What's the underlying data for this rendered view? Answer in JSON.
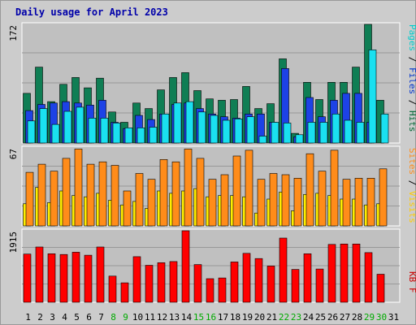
{
  "chart_data": {
    "type": "bar",
    "title": "Daily usage for April 2023",
    "categories": [
      "1",
      "2",
      "3",
      "4",
      "5",
      "6",
      "7",
      "8",
      "9",
      "10",
      "11",
      "12",
      "13",
      "14",
      "15",
      "16",
      "17",
      "18",
      "19",
      "20",
      "21",
      "22",
      "23",
      "24",
      "25",
      "26",
      "27",
      "28",
      "29",
      "30",
      "31"
    ],
    "weekend_days": [
      "8",
      "9",
      "15",
      "16",
      "22",
      "23",
      "29",
      "30"
    ],
    "panels": [
      {
        "id": "hits",
        "max_label": "172",
        "ymax": 172,
        "legend": [
          {
            "text": "Pages",
            "color": "#00cccc"
          },
          {
            "text": "Files",
            "color": "#0033cc"
          },
          {
            "text": "Hits",
            "color": "#006633"
          }
        ],
        "series": [
          {
            "name": "Hits",
            "color": "#0f7e54",
            "values": [
              72,
              110,
              60,
              85,
              95,
              80,
              94,
              45,
              30,
              58,
              50,
              77,
              95,
              102,
              76,
              64,
              62,
              63,
              82,
              50,
              57,
              122,
              14,
              88,
              63,
              88,
              88,
              110,
              172,
              62,
              null
            ]
          },
          {
            "name": "Files",
            "color": "#1d42e6",
            "values": [
              47,
              56,
              58,
              60,
              58,
              55,
              62,
              30,
              21,
              40,
              34,
              42,
              56,
              58,
              50,
              42,
              38,
              36,
              42,
              42,
              30,
              108,
              9,
              66,
              38,
              62,
              72,
              72,
              30,
              0,
              null
            ]
          },
          {
            "name": "Pages",
            "color": "#1ae0f0",
            "values": [
              32,
              50,
              27,
              46,
              52,
              36,
              36,
              29,
              22,
              22,
              23,
              42,
              58,
              60,
              45,
              40,
              33,
              35,
              38,
              10,
              30,
              29,
              12,
              30,
              30,
              42,
              33,
              30,
              135,
              42,
              null
            ]
          }
        ]
      },
      {
        "id": "sites",
        "max_label": "67",
        "ymax": 67,
        "legend": [
          {
            "text": "Sites",
            "color": "#ff8c1a"
          },
          {
            "text": "Visits",
            "color": "#ffcc00"
          }
        ],
        "series": [
          {
            "name": "Visits",
            "color": "#ffee00",
            "values": [
              19,
              33,
              20,
              30,
              26,
              25,
              28,
              22,
              18,
              21,
              15,
              30,
              28,
              30,
              32,
              25,
              26,
              26,
              25,
              11,
              23,
              29,
              13,
              27,
              28,
              26,
              23,
              23,
              18,
              19,
              null
            ]
          },
          {
            "name": "Sites",
            "color": "#ff8c1a",
            "values": [
              46,
              53,
              47,
              58,
              66,
              53,
              55,
              52,
              30,
              45,
              40,
              57,
              55,
              66,
              58,
              40,
              44,
              60,
              65,
              40,
              45,
              44,
              41,
              62,
              47,
              65,
              40,
              41,
              41,
              49,
              null
            ]
          }
        ]
      },
      {
        "id": "kb",
        "max_label": "1915",
        "ymax": 1915,
        "legend": [
          {
            "text": "KB F",
            "color": "#cc0000"
          }
        ],
        "series": [
          {
            "name": "KB F",
            "color": "#ff0000",
            "values": [
              1290,
              1480,
              1300,
              1280,
              1340,
              1260,
              1480,
              700,
              520,
              1220,
              990,
              1060,
              1090,
              1915,
              1010,
              630,
              650,
              1080,
              1310,
              1170,
              970,
              1720,
              880,
              1300,
              890,
              1550,
              1560,
              1560,
              1330,
              750,
              null
            ]
          }
        ]
      }
    ]
  }
}
